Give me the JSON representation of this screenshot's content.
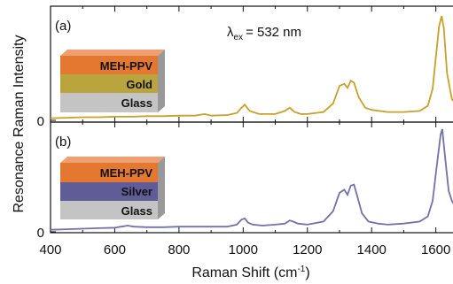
{
  "figure": {
    "ylabel": "Resonance Raman Intensity",
    "xlabel_main": "Raman Shift (cm",
    "xlabel_sup": "-1",
    "xlabel_close": ")",
    "excitation": {
      "lambda": "λ",
      "sub": "ex",
      "value": "= 532 nm"
    }
  },
  "chart_data": [
    {
      "type": "line",
      "panel_label": "(a)",
      "ylabel": "Resonance Raman Intensity",
      "xlabel": "Raman Shift (cm-1)",
      "xlim": [
        400,
        1670
      ],
      "ylim": [
        0,
        1
      ],
      "x_ticks": [
        400,
        600,
        800,
        1000,
        1200,
        1400,
        1600
      ],
      "y_ticks": [
        0
      ],
      "series": [
        {
          "color": "#c8a02c",
          "x": [
            400,
            450,
            500,
            550,
            600,
            650,
            700,
            750,
            800,
            850,
            880,
            900,
            950,
            980,
            995,
            1005,
            1020,
            1050,
            1100,
            1130,
            1145,
            1160,
            1180,
            1200,
            1250,
            1280,
            1300,
            1315,
            1325,
            1335,
            1345,
            1360,
            1380,
            1400,
            1450,
            1500,
            1550,
            1575,
            1590,
            1600,
            1610,
            1618,
            1625,
            1635,
            1650,
            1670
          ],
          "values": [
            0.02,
            0.025,
            0.03,
            0.03,
            0.035,
            0.035,
            0.04,
            0.04,
            0.045,
            0.045,
            0.06,
            0.045,
            0.05,
            0.07,
            0.12,
            0.15,
            0.09,
            0.06,
            0.06,
            0.09,
            0.12,
            0.08,
            0.06,
            0.06,
            0.08,
            0.16,
            0.33,
            0.35,
            0.31,
            0.38,
            0.36,
            0.22,
            0.12,
            0.1,
            0.08,
            0.08,
            0.09,
            0.14,
            0.3,
            0.6,
            0.9,
            1.0,
            0.88,
            0.45,
            0.2,
            0.15
          ]
        }
      ],
      "inset": {
        "layers": [
          "MEH-PPV",
          "Gold",
          "Glass"
        ],
        "colors": [
          "#e47831",
          "#b9a43e",
          "#c4c4c4"
        ]
      }
    },
    {
      "type": "line",
      "panel_label": "(b)",
      "ylabel": "Resonance Raman Intensity",
      "xlabel": "Raman Shift (cm-1)",
      "xlim": [
        400,
        1670
      ],
      "ylim": [
        0,
        1
      ],
      "x_ticks": [
        400,
        600,
        800,
        1000,
        1200,
        1400,
        1600
      ],
      "y_ticks": [
        0
      ],
      "series": [
        {
          "color": "#7470a8",
          "x": [
            400,
            450,
            500,
            550,
            600,
            620,
            640,
            660,
            700,
            750,
            800,
            850,
            900,
            950,
            980,
            995,
            1005,
            1015,
            1030,
            1060,
            1100,
            1130,
            1145,
            1155,
            1170,
            1200,
            1250,
            1280,
            1300,
            1315,
            1325,
            1335,
            1345,
            1355,
            1370,
            1390,
            1420,
            1450,
            1500,
            1550,
            1575,
            1590,
            1605,
            1615,
            1620,
            1628,
            1640,
            1650,
            1660,
            1670
          ],
          "values": [
            0.02,
            0.025,
            0.03,
            0.035,
            0.04,
            0.05,
            0.06,
            0.05,
            0.045,
            0.045,
            0.05,
            0.05,
            0.05,
            0.05,
            0.07,
            0.12,
            0.13,
            0.09,
            0.07,
            0.06,
            0.07,
            0.08,
            0.11,
            0.1,
            0.08,
            0.07,
            0.1,
            0.2,
            0.38,
            0.41,
            0.36,
            0.45,
            0.46,
            0.35,
            0.18,
            0.1,
            0.08,
            0.07,
            0.08,
            0.1,
            0.15,
            0.3,
            0.7,
            0.95,
            1.0,
            0.75,
            0.4,
            0.3,
            0.25,
            0.18
          ]
        }
      ],
      "inset": {
        "layers": [
          "MEH-PPV",
          "Silver",
          "Glass"
        ],
        "colors": [
          "#e47831",
          "#5f5c98",
          "#c4c4c4"
        ]
      }
    }
  ]
}
